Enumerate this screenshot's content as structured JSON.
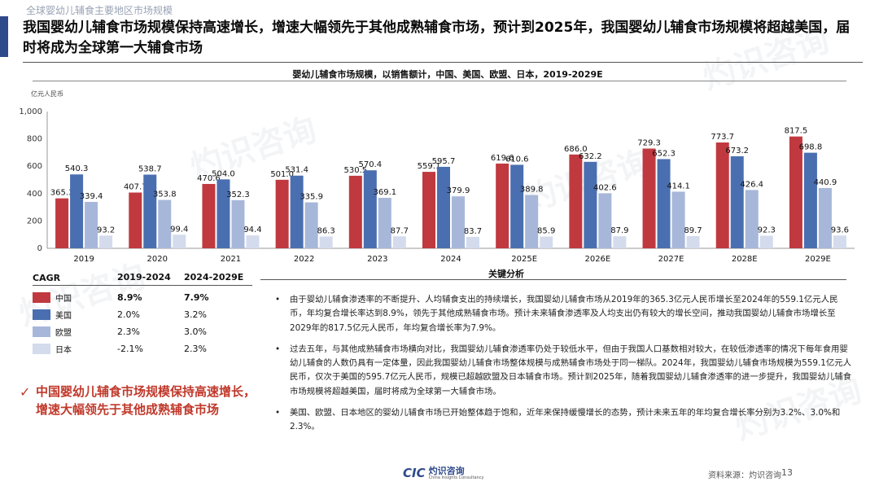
{
  "breadcrumb": "全球婴幼儿辅食主要地区市场规模",
  "headline": "我国婴幼儿辅食市场规模保持高速增长，增速大幅领先于其他成熟辅食市场，预计到2025年，我国婴幼儿辅食市场规模将超越美国，届时将成为全球第一大辅食市场",
  "colors": {
    "china": "#c0393f",
    "usa": "#4a6fb0",
    "eu": "#a7b7d9",
    "japan": "#d3dbec",
    "accent": "#c0392b",
    "brand": "#2f4a8a"
  },
  "chart_data": {
    "type": "bar",
    "title": "婴幼儿辅食市场规模，以销售额计，中国、美国、欧盟、日本，2019-2029E",
    "ylabel": "亿元人民币",
    "ylim": [
      0,
      1000
    ],
    "yticks": [
      "0",
      "200",
      "400",
      "600",
      "800",
      "1,000"
    ],
    "categories": [
      "2019",
      "2020",
      "2021",
      "2022",
      "2023",
      "2024",
      "2025E",
      "2026E",
      "2027E",
      "2028E",
      "2029E"
    ],
    "series": [
      {
        "name": "中国",
        "values": [
          365.3,
          407.7,
          470.6,
          501.0,
          530.5,
          559.1,
          619.6,
          686.0,
          729.3,
          773.7,
          817.5
        ]
      },
      {
        "name": "美国",
        "values": [
          540.3,
          538.7,
          504.0,
          531.4,
          570.4,
          595.7,
          610.6,
          632.2,
          652.3,
          673.2,
          698.8
        ]
      },
      {
        "name": "欧盟",
        "values": [
          339.4,
          353.8,
          352.3,
          335.9,
          369.1,
          379.9,
          389.8,
          402.6,
          414.1,
          426.4,
          440.9
        ]
      },
      {
        "name": "日本",
        "values": [
          93.2,
          99.4,
          94.4,
          86.3,
          87.7,
          83.7,
          85.9,
          87.9,
          89.7,
          92.3,
          93.6
        ]
      }
    ],
    "grid": false,
    "legend": "none"
  },
  "analysis_title": "关键分析",
  "cagr": {
    "header": [
      "CAGR",
      "2019-2024",
      "2024-2029E"
    ],
    "rows": [
      {
        "name": "中国",
        "a": "8.9%",
        "b": "7.9%"
      },
      {
        "name": "美国",
        "a": "2.0%",
        "b": "3.2%"
      },
      {
        "name": "欧盟",
        "a": "2.3%",
        "b": "3.0%"
      },
      {
        "name": "日本",
        "a": "-2.1%",
        "b": "2.3%"
      }
    ]
  },
  "callout": "中国婴幼儿辅食市场规模保持高速增长，增速大幅领先于其他成熟辅食市场",
  "bullets": [
    "由于婴幼儿辅食渗透率的不断提升、人均辅食支出的持续增长，我国婴幼儿辅食市场从2019年的365.3亿元人民币增长至2024年的559.1亿元人民币，年均复合增长率达到8.9%，领先于其他成熟辅食市场。预计未来辅食渗透率及人均支出仍有较大的增长空间，推动我国婴幼儿辅食市场增长至2029年的817.5亿元人民币，年均复合增长率为7.9%。",
    "过去五年，与其他成熟辅食市场横向对比，我国婴幼儿辅食渗透率仍处于较低水平，但由于我国人口基数相对较大，在较低渗透率的情况下每年食用婴幼儿辅食的人数仍具有一定体量，因此我国婴幼儿辅食市场整体规模与成熟辅食市场处于同一梯队。2024年，我国婴幼儿辅食市场规模为559.1亿元人民币，仅次于美国的595.7亿元人民币，规模已超越欧盟及日本辅食市场。预计到2025年，随着我国婴幼儿辅食渗透率的进一步提升，我国婴幼儿辅食市场规模将超越美国，届时将成为全球第一大辅食市场。",
    "美国、欧盟、日本地区的婴幼儿辅食市场已开始整体趋于饱和，近年来保持缓慢增长的态势，预计未来五年的年均复合增长率分别为3.2%、3.0%和2.3%。"
  ],
  "footer": {
    "logo_mark": "CIC",
    "logo_cn": "灼识咨询",
    "logo_en": "China Insights Consultancy",
    "source": "资料来源：灼识咨询",
    "page": "13"
  },
  "checkmark": "✓"
}
